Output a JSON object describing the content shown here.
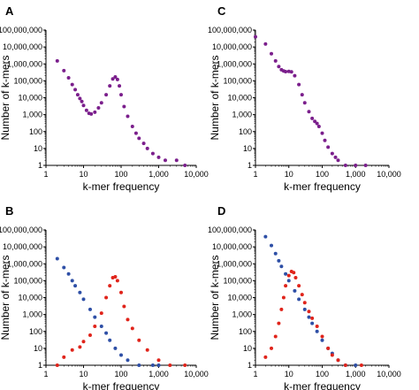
{
  "colors": {
    "purple": "#7b1f8c",
    "blue": "#2e4fa6",
    "red": "#e0241b",
    "axis": "#000000"
  },
  "chart_data": [
    {
      "panel": "A",
      "type": "scatter",
      "xlabel": "k-mer frequency",
      "ylabel": "Number of k-mers",
      "xscale": "log",
      "yscale": "log",
      "xlim": [
        1,
        10000
      ],
      "ylim": [
        1,
        100000000
      ],
      "x_ticks": [
        "1",
        "10",
        "100",
        "1,000",
        "10,000"
      ],
      "y_ticks": [
        "1",
        "10",
        "100",
        "1,000",
        "10,000",
        "100,000",
        "1,000,000",
        "10,000,000",
        "100,000,000"
      ],
      "series": [
        {
          "color": "purple",
          "points": [
            [
              2,
              1500000
            ],
            [
              3,
              400000
            ],
            [
              4,
              150000
            ],
            [
              5,
              60000
            ],
            [
              6,
              30000
            ],
            [
              7,
              15000
            ],
            [
              8,
              9000
            ],
            [
              9,
              6000
            ],
            [
              10,
              3500
            ],
            [
              12,
              1800
            ],
            [
              14,
              1200
            ],
            [
              16,
              1100
            ],
            [
              20,
              1400
            ],
            [
              25,
              2500
            ],
            [
              30,
              5000
            ],
            [
              40,
              15000
            ],
            [
              50,
              50000
            ],
            [
              60,
              130000
            ],
            [
              70,
              170000
            ],
            [
              80,
              120000
            ],
            [
              90,
              50000
            ],
            [
              100,
              15000
            ],
            [
              120,
              3000
            ],
            [
              150,
              800
            ],
            [
              200,
              200
            ],
            [
              250,
              80
            ],
            [
              300,
              40
            ],
            [
              400,
              20
            ],
            [
              500,
              10
            ],
            [
              700,
              5
            ],
            [
              1000,
              3
            ],
            [
              1500,
              2
            ],
            [
              3000,
              2
            ],
            [
              5000,
              1
            ]
          ]
        }
      ]
    },
    {
      "panel": "B",
      "type": "scatter",
      "xlabel": "k-mer frequency",
      "ylabel": "Number of k-mers",
      "xscale": "log",
      "yscale": "log",
      "xlim": [
        1,
        10000
      ],
      "ylim": [
        1,
        100000000
      ],
      "x_ticks": [
        "1",
        "10",
        "100",
        "1,000",
        "10,000"
      ],
      "y_ticks": [
        "1",
        "10",
        "100",
        "1,000",
        "10,000",
        "100,000",
        "1,000,000",
        "10,000,000",
        "100,000,000"
      ],
      "series": [
        {
          "color": "blue",
          "points": [
            [
              2,
              2000000
            ],
            [
              3,
              600000
            ],
            [
              4,
              250000
            ],
            [
              5,
              100000
            ],
            [
              6,
              50000
            ],
            [
              8,
              20000
            ],
            [
              10,
              8000
            ],
            [
              15,
              2000
            ],
            [
              20,
              700
            ],
            [
              30,
              200
            ],
            [
              40,
              80
            ],
            [
              50,
              30
            ],
            [
              70,
              10
            ],
            [
              100,
              4
            ],
            [
              150,
              2
            ],
            [
              300,
              1
            ],
            [
              700,
              1
            ],
            [
              1000,
              1
            ]
          ]
        },
        {
          "color": "red",
          "points": [
            [
              2,
              1
            ],
            [
              3,
              3
            ],
            [
              5,
              8
            ],
            [
              8,
              12
            ],
            [
              10,
              25
            ],
            [
              15,
              60
            ],
            [
              20,
              200
            ],
            [
              30,
              1200
            ],
            [
              40,
              10000
            ],
            [
              50,
              50000
            ],
            [
              60,
              150000
            ],
            [
              70,
              170000
            ],
            [
              80,
              100000
            ],
            [
              100,
              20000
            ],
            [
              120,
              3000
            ],
            [
              150,
              500
            ],
            [
              200,
              150
            ],
            [
              300,
              30
            ],
            [
              500,
              8
            ],
            [
              1000,
              2
            ],
            [
              2000,
              1
            ],
            [
              5000,
              1
            ]
          ]
        }
      ]
    },
    {
      "panel": "C",
      "type": "scatter",
      "xlabel": "k-mer frequency",
      "ylabel": "Number of k-mers",
      "xscale": "log",
      "yscale": "log",
      "xlim": [
        1,
        10000
      ],
      "ylim": [
        1,
        100000000
      ],
      "x_ticks": [
        "1",
        "10",
        "100",
        "1,000",
        "10,000"
      ],
      "y_ticks": [
        "1",
        "10",
        "100",
        "1,000",
        "10,000",
        "100,000",
        "1,000,000",
        "10,000,000",
        "100,000,000"
      ],
      "series": [
        {
          "color": "purple",
          "points": [
            [
              1,
              40000000
            ],
            [
              2,
              15000000
            ],
            [
              3,
              4000000
            ],
            [
              4,
              1500000
            ],
            [
              5,
              700000
            ],
            [
              6,
              450000
            ],
            [
              7,
              380000
            ],
            [
              8,
              350000
            ],
            [
              10,
              360000
            ],
            [
              12,
              340000
            ],
            [
              15,
              200000
            ],
            [
              20,
              60000
            ],
            [
              25,
              15000
            ],
            [
              30,
              5000
            ],
            [
              40,
              1500
            ],
            [
              50,
              600
            ],
            [
              60,
              400
            ],
            [
              70,
              300
            ],
            [
              80,
              200
            ],
            [
              100,
              80
            ],
            [
              120,
              30
            ],
            [
              150,
              12
            ],
            [
              200,
              5
            ],
            [
              250,
              3
            ],
            [
              300,
              2
            ],
            [
              500,
              1
            ],
            [
              1000,
              1
            ],
            [
              2000,
              1
            ]
          ]
        }
      ]
    },
    {
      "panel": "D",
      "type": "scatter",
      "xlabel": "k-mer frequency",
      "ylabel": "Number of k-mers",
      "xscale": "log",
      "yscale": "log",
      "xlim": [
        1,
        10000
      ],
      "ylim": [
        1,
        100000000
      ],
      "x_ticks": [
        "1",
        "10",
        "100",
        "1,000",
        "10,000"
      ],
      "y_ticks": [
        "1",
        "10",
        "100",
        "1,000",
        "10,000",
        "100,000",
        "1,000,000",
        "10,000,000",
        "100,000,000"
      ],
      "series": [
        {
          "color": "blue",
          "points": [
            [
              2,
              40000000
            ],
            [
              3,
              12000000
            ],
            [
              4,
              4000000
            ],
            [
              5,
              1500000
            ],
            [
              6,
              700000
            ],
            [
              8,
              250000
            ],
            [
              10,
              100000
            ],
            [
              15,
              25000
            ],
            [
              20,
              8000
            ],
            [
              30,
              2000
            ],
            [
              40,
              700
            ],
            [
              50,
              300
            ],
            [
              70,
              100
            ],
            [
              100,
              30
            ],
            [
              150,
              10
            ],
            [
              200,
              5
            ],
            [
              300,
              2
            ],
            [
              500,
              1
            ],
            [
              1000,
              1
            ]
          ]
        },
        {
          "color": "red",
          "points": [
            [
              2,
              3
            ],
            [
              3,
              10
            ],
            [
              4,
              50
            ],
            [
              5,
              300
            ],
            [
              6,
              2000
            ],
            [
              7,
              10000
            ],
            [
              8,
              50000
            ],
            [
              10,
              200000
            ],
            [
              12,
              350000
            ],
            [
              14,
              300000
            ],
            [
              16,
              150000
            ],
            [
              20,
              50000
            ],
            [
              25,
              15000
            ],
            [
              30,
              5000
            ],
            [
              40,
              1500
            ],
            [
              50,
              600
            ],
            [
              70,
              200
            ],
            [
              100,
              50
            ],
            [
              150,
              10
            ],
            [
              200,
              4
            ],
            [
              300,
              2
            ],
            [
              500,
              1
            ],
            [
              1500,
              1
            ]
          ]
        }
      ]
    }
  ]
}
